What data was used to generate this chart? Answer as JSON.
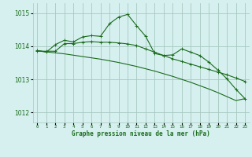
{
  "title": "Graphe pression niveau de la mer (hPa)",
  "bg_color": "#d6f0f0",
  "grid_color": "#a8c8c0",
  "line_color": "#1a6b1a",
  "xlim": [
    -0.5,
    23.5
  ],
  "ylim": [
    1011.7,
    1015.3
  ],
  "yticks": [
    1012,
    1013,
    1014,
    1015
  ],
  "xtick_labels": [
    "0",
    "1",
    "2",
    "3",
    "4",
    "5",
    "6",
    "7",
    "8",
    "9",
    "10",
    "11",
    "12",
    "13",
    "14",
    "15",
    "16",
    "17",
    "18",
    "19",
    "20",
    "21",
    "22",
    "23"
  ],
  "line1_x": [
    0,
    1,
    2,
    3,
    4,
    5,
    6,
    7,
    8,
    9,
    10,
    11,
    12,
    13,
    14,
    15,
    16,
    17,
    18,
    19,
    20,
    21,
    22,
    23
  ],
  "line1_y": [
    1013.87,
    1013.82,
    1014.05,
    1014.18,
    1014.13,
    1014.28,
    1014.32,
    1014.3,
    1014.68,
    1014.88,
    1014.96,
    1014.62,
    1014.3,
    1013.78,
    1013.72,
    1013.74,
    1013.92,
    1013.82,
    1013.72,
    1013.52,
    1013.28,
    1013.02,
    1012.7,
    1012.42
  ],
  "line2_x": [
    0,
    1,
    2,
    3,
    4,
    5,
    6,
    7,
    8,
    9,
    10,
    11,
    12,
    13,
    14,
    15,
    16,
    17,
    18,
    19,
    20,
    21,
    22,
    23
  ],
  "line2_y": [
    1013.85,
    1013.85,
    1013.85,
    1014.08,
    1014.08,
    1014.12,
    1014.14,
    1014.12,
    1014.12,
    1014.1,
    1014.07,
    1014.02,
    1013.92,
    1013.82,
    1013.72,
    1013.62,
    1013.54,
    1013.46,
    1013.38,
    1013.3,
    1013.22,
    1013.14,
    1013.04,
    1012.94
  ],
  "line3_x": [
    0,
    1,
    2,
    3,
    4,
    5,
    6,
    7,
    8,
    9,
    10,
    11,
    12,
    13,
    14,
    15,
    16,
    17,
    18,
    19,
    20,
    21,
    22,
    23
  ],
  "line3_y": [
    1013.87,
    1013.83,
    1013.8,
    1013.77,
    1013.73,
    1013.69,
    1013.65,
    1013.61,
    1013.56,
    1013.51,
    1013.45,
    1013.39,
    1013.32,
    1013.25,
    1013.17,
    1013.09,
    1013.0,
    1012.91,
    1012.81,
    1012.71,
    1012.6,
    1012.48,
    1012.36,
    1012.42
  ]
}
